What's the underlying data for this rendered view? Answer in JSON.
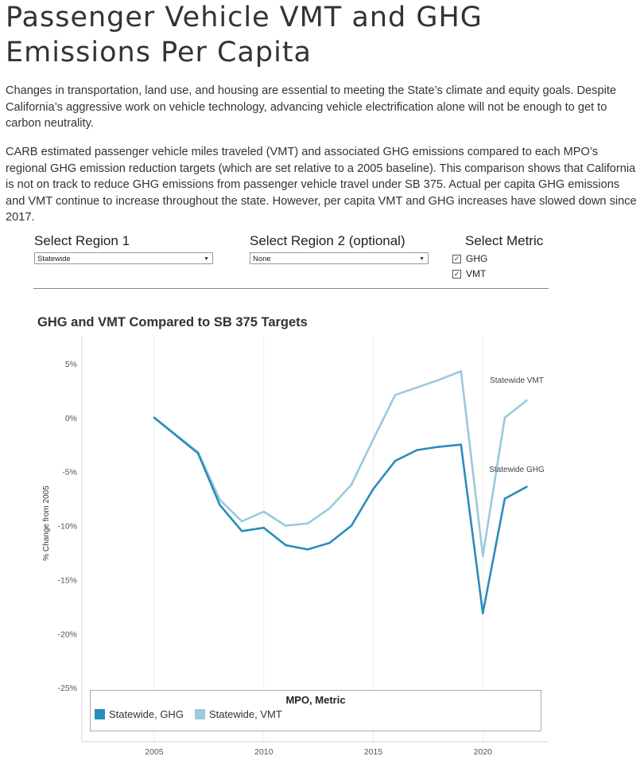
{
  "page": {
    "title": "Passenger Vehicle VMT and GHG Emissions Per Capita",
    "paragraph1": "Changes in transportation, land use, and housing are essential to meeting the State’s climate and equity goals. Despite California’s aggressive work on vehicle technology, advancing vehicle electrification alone will not be enough to get to carbon neutrality.",
    "paragraph2": "CARB estimated passenger vehicle miles traveled (VMT) and associated GHG emissions compared to each MPO’s regional GHG emission reduction targets (which are set relative to a 2005 baseline). This comparison shows that California is not on track to reduce GHG emissions from passenger vehicle travel under SB 375. Actual per capita GHG emissions and VMT continue to increase throughout the state. However, per capita VMT and GHG increases have slowed down since 2017."
  },
  "filters": {
    "region1": {
      "label": "Select Region 1",
      "value": "Statewide"
    },
    "region2": {
      "label": "Select Region 2 (optional)",
      "value": "None"
    },
    "metric": {
      "label": "Select Metric",
      "options": [
        {
          "label": "GHG",
          "checked": true
        },
        {
          "label": "VMT",
          "checked": true
        }
      ]
    }
  },
  "chart_data": {
    "type": "line",
    "title": "GHG and VMT Compared to SB 375 Targets",
    "ylabel": "% Change from 2005",
    "xlabel": "",
    "xlim": [
      2001.7,
      2023
    ],
    "ylim": [
      -30,
      7.5
    ],
    "x_ticks": [
      2005,
      2010,
      2015,
      2020
    ],
    "y_ticks": [
      5,
      0,
      -5,
      -10,
      -15,
      -20,
      -25
    ],
    "y_tick_labels": [
      "5%",
      "0%",
      "-5%",
      "-10%",
      "-15%",
      "-20%",
      "-25%"
    ],
    "grid": "vertical",
    "series": [
      {
        "name": "Statewide, GHG",
        "end_label": "Statewide GHG",
        "color": "#2a8dbb",
        "x": [
          2005,
          2007,
          2008,
          2009,
          2010,
          2011,
          2012,
          2013,
          2014,
          2015,
          2016,
          2017,
          2018,
          2019,
          2020,
          2021,
          2022
        ],
        "values": [
          0,
          -3.3,
          -8.1,
          -10.5,
          -10.2,
          -11.8,
          -12.2,
          -11.6,
          -10.0,
          -6.6,
          -4.0,
          -3.0,
          -2.7,
          -2.5,
          -18.1,
          -7.5,
          -6.4
        ]
      },
      {
        "name": "Statewide, VMT",
        "end_label": "Statewide VMT",
        "color": "#9ac9de",
        "x": [
          2005,
          2007,
          2008,
          2009,
          2010,
          2011,
          2012,
          2013,
          2014,
          2015,
          2016,
          2017,
          2018,
          2019,
          2020,
          2021,
          2022
        ],
        "values": [
          0,
          -3.2,
          -7.6,
          -9.6,
          -8.7,
          -10.0,
          -9.8,
          -8.4,
          -6.2,
          -2.0,
          2.1,
          2.8,
          3.5,
          4.3,
          -12.8,
          0.0,
          1.6
        ]
      }
    ],
    "legend": {
      "title": "MPO, Metric",
      "position": "bottom"
    }
  }
}
